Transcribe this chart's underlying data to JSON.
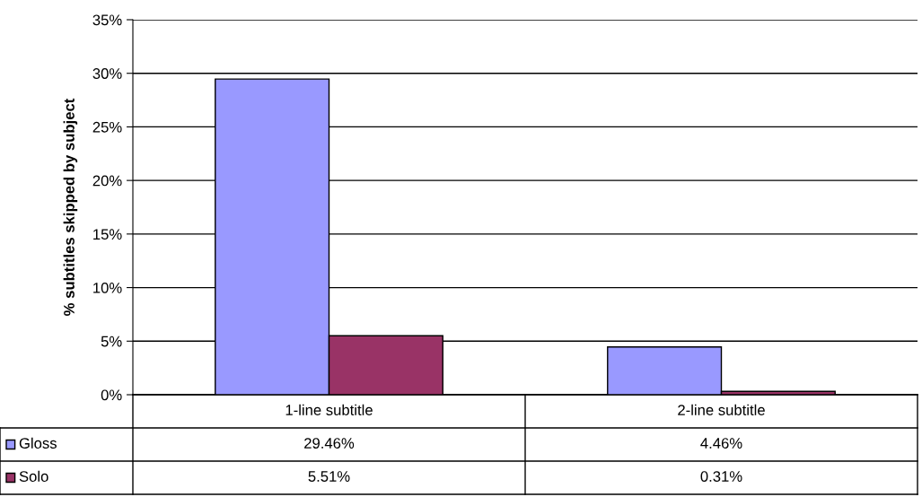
{
  "chart_data": {
    "type": "bar",
    "ylabel": "% subtitles skipped by subject",
    "categories": [
      "1-line subtitle",
      "2-line subtitle"
    ],
    "series": [
      {
        "name": "Gloss",
        "color": "#9999ff",
        "values": [
          29.46,
          4.46
        ],
        "value_labels": [
          "29.46%",
          "4.46%"
        ]
      },
      {
        "name": "Solo",
        "color": "#993366",
        "values": [
          5.51,
          0.31
        ],
        "value_labels": [
          "5.51%",
          "0.31%"
        ]
      }
    ],
    "ylim": [
      0,
      35
    ],
    "yticks": [
      {
        "value": 0,
        "label": "0%"
      },
      {
        "value": 5,
        "label": "5%"
      },
      {
        "value": 10,
        "label": "10%"
      },
      {
        "value": 15,
        "label": "15%"
      },
      {
        "value": 20,
        "label": "20%"
      },
      {
        "value": 25,
        "label": "25%"
      },
      {
        "value": 30,
        "label": "30%"
      },
      {
        "value": 35,
        "label": "35%"
      }
    ],
    "grid": "y",
    "legend": "bottom"
  }
}
